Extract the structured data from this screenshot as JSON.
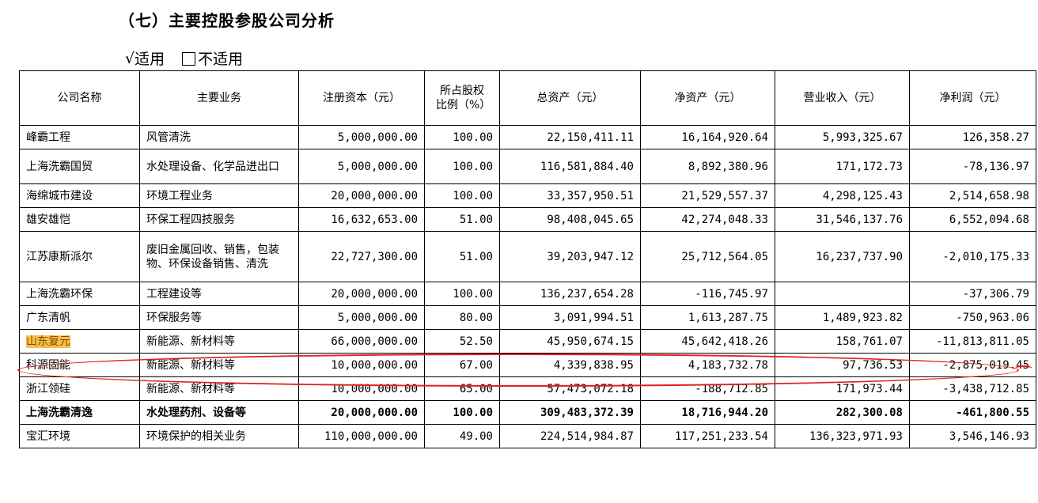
{
  "heading": "（七）主要控股参股公司分析",
  "applicability": {
    "applicable_mark": "√",
    "applicable_label": "适用",
    "not_applicable_label": "不适用"
  },
  "table": {
    "headers": [
      "公司名称",
      "主要业务",
      "注册资本（元）",
      "所占股权比例（%）",
      "总资产（元）",
      "净资产（元）",
      "营业收入（元）",
      "净利润（元）"
    ],
    "rows": [
      {
        "name": "峰霸工程",
        "business": "风管清洗",
        "capital": "5,000,000.00",
        "ratio": "100.00",
        "assets": "22,150,411.11",
        "net_assets": "16,164,920.64",
        "revenue": "5,993,325.67",
        "profit": "126,358.27"
      },
      {
        "name": "上海洗霸国贸",
        "business": "水处理设备、化学品进出口",
        "capital": "5,000,000.00",
        "ratio": "100.00",
        "assets": "116,581,884.40",
        "net_assets": "8,892,380.96",
        "revenue": "171,172.73",
        "profit": "-78,136.97"
      },
      {
        "name": "海绵城市建设",
        "business": "环境工程业务",
        "capital": "20,000,000.00",
        "ratio": "100.00",
        "assets": "33,357,950.51",
        "net_assets": "21,529,557.37",
        "revenue": "4,298,125.43",
        "profit": "2,514,658.98"
      },
      {
        "name": "雄安雄恺",
        "business": "环保工程四技服务",
        "capital": "16,632,653.00",
        "ratio": "51.00",
        "assets": "98,408,045.65",
        "net_assets": "42,274,048.33",
        "revenue": "31,546,137.76",
        "profit": "6,552,094.68"
      },
      {
        "name": "江苏康斯派尔",
        "business": "废旧金属回收、销售，包装物、环保设备销售、清洗",
        "capital": "22,727,300.00",
        "ratio": "51.00",
        "assets": "39,203,947.12",
        "net_assets": "25,712,564.05",
        "revenue": "16,237,737.90",
        "profit": "-2,010,175.33"
      },
      {
        "name": "上海洗霸环保",
        "business": "工程建设等",
        "capital": "20,000,000.00",
        "ratio": "100.00",
        "assets": "136,237,654.28",
        "net_assets": "-116,745.97",
        "revenue": "",
        "profit": "-37,306.79"
      },
      {
        "name": "广东清帆",
        "business": "环保服务等",
        "capital": "5,000,000.00",
        "ratio": "80.00",
        "assets": "3,091,994.51",
        "net_assets": "1,613,287.75",
        "revenue": "1,489,923.82",
        "profit": "-750,963.06"
      },
      {
        "name": "山东复元",
        "business": "新能源、新材料等",
        "capital": "66,000,000.00",
        "ratio": "52.50",
        "assets": "45,950,674.15",
        "net_assets": "45,642,418.26",
        "revenue": "158,761.07",
        "profit": "-11,813,811.05"
      },
      {
        "name": "科源固能",
        "business": "新能源、新材料等",
        "capital": "10,000,000.00",
        "ratio": "67.00",
        "assets": "4,339,838.95",
        "net_assets": "4,183,732.78",
        "revenue": "97,736.53",
        "profit": "-2,875,019.45"
      },
      {
        "name": "浙江领硅",
        "business": "新能源、新材料等",
        "capital": "10,000,000.00",
        "ratio": "65.00",
        "assets": "57,473,072.18",
        "net_assets": "-188,712.85",
        "revenue": "171,973.44",
        "profit": "-3,438,712.85"
      },
      {
        "name": "上海洗霸清逸",
        "business": "水处理药剂、设备等",
        "capital": "20,000,000.00",
        "ratio": "100.00",
        "assets": "309,483,372.39",
        "net_assets": "18,716,944.20",
        "revenue": "282,300.08",
        "profit": "-461,800.55"
      },
      {
        "name": "宝汇环境",
        "business": "环境保护的相关业务",
        "capital": "110,000,000.00",
        "ratio": "49.00",
        "assets": "224,514,984.87",
        "net_assets": "117,251,233.54",
        "revenue": "136,323,971.93",
        "profit": "3,546,146.93"
      }
    ]
  },
  "annotation_color": "#e0201c",
  "highlight_color": "#f5c04a"
}
